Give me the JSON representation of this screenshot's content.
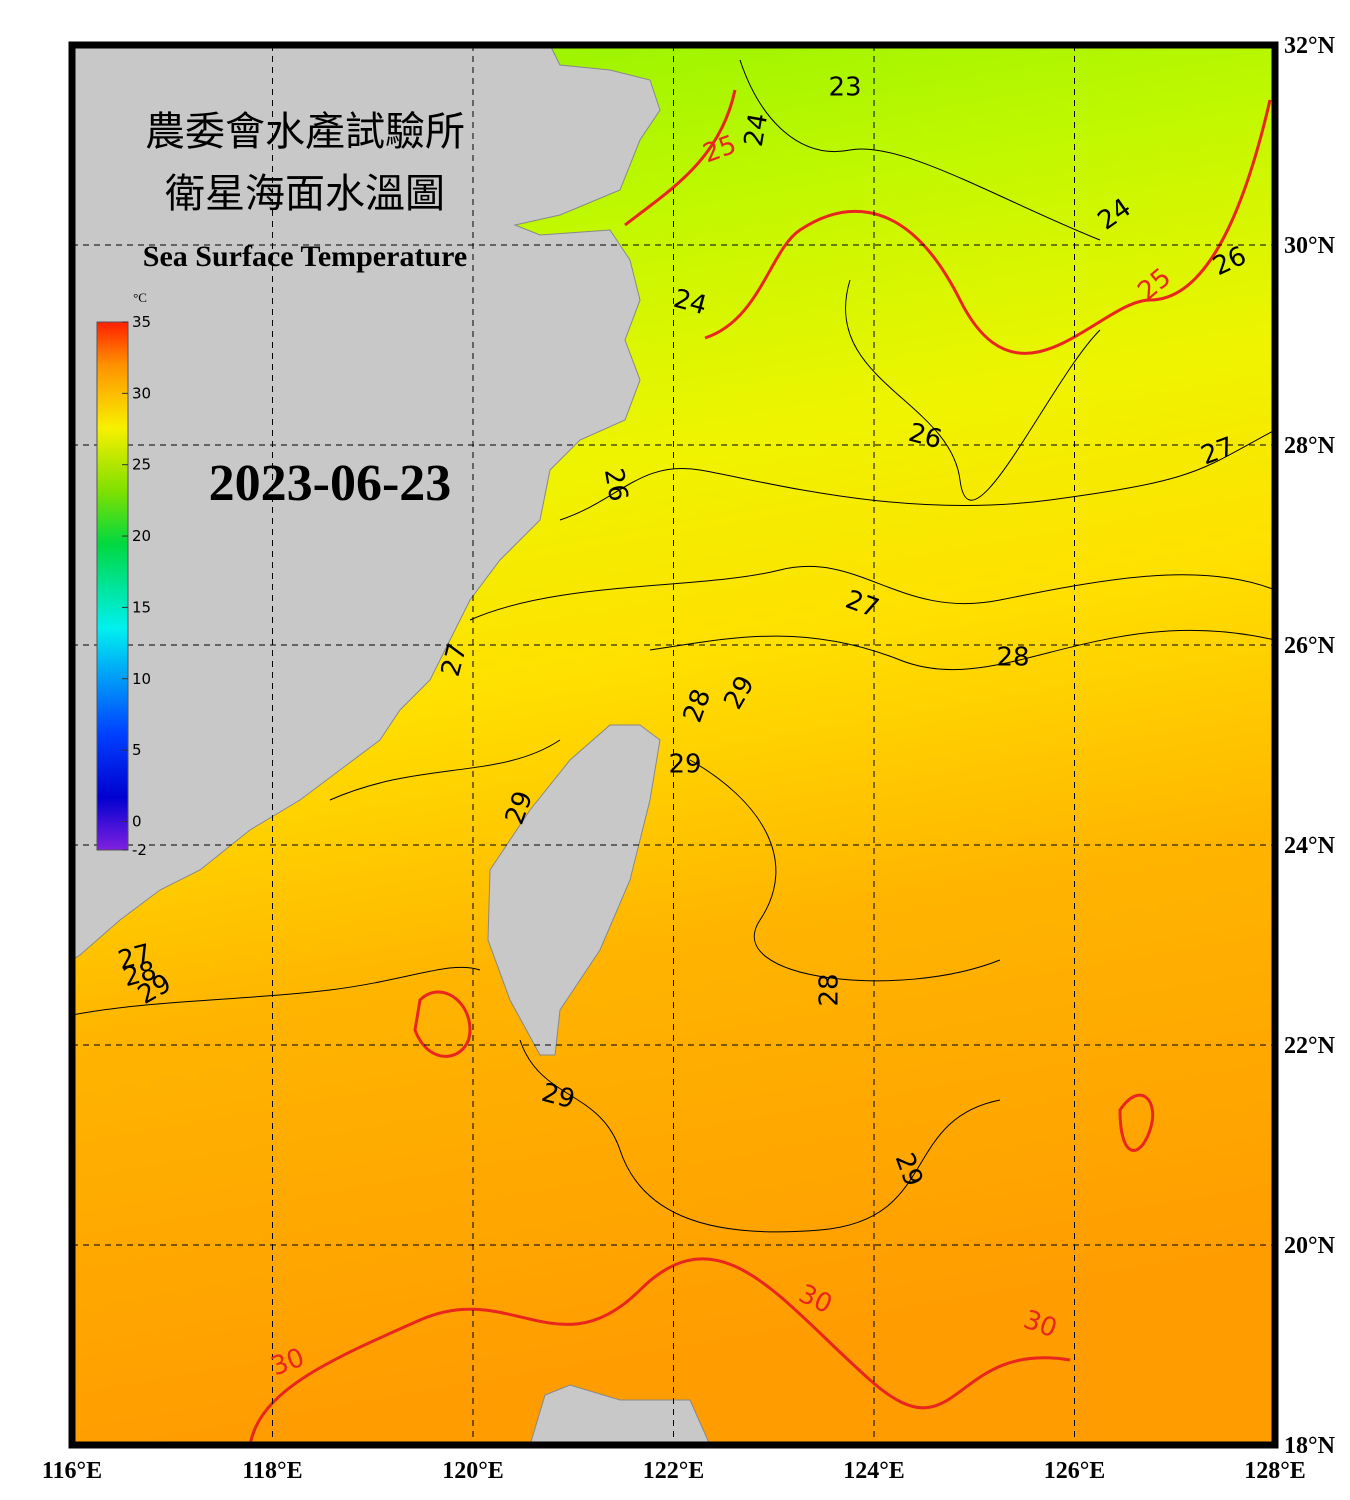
{
  "header": {
    "title_zh_1": "農委會水產試驗所",
    "title_zh_2": "衛星海面水溫圖",
    "title_en": "Sea Surface Temperature",
    "date": "2023-06-23"
  },
  "colorbar": {
    "unit": "°C",
    "range": [
      -2,
      35
    ],
    "ticks": [
      35,
      30,
      25,
      20,
      15,
      10,
      5,
      0,
      -2
    ]
  },
  "map": {
    "lon_range": [
      116,
      128
    ],
    "lat_range": [
      18,
      32
    ],
    "lon_ticks": [
      {
        "value": 116,
        "label": "116°E"
      },
      {
        "value": 118,
        "label": "118°E"
      },
      {
        "value": 120,
        "label": "120°E"
      },
      {
        "value": 122,
        "label": "122°E"
      },
      {
        "value": 124,
        "label": "124°E"
      },
      {
        "value": 126,
        "label": "126°E"
      },
      {
        "value": 128,
        "label": "128°E"
      }
    ],
    "lat_ticks": [
      {
        "value": 32,
        "label": "32°N"
      },
      {
        "value": 30,
        "label": "30°N"
      },
      {
        "value": 28,
        "label": "28°N"
      },
      {
        "value": 26,
        "label": "26°N"
      },
      {
        "value": 24,
        "label": "24°N"
      },
      {
        "value": 22,
        "label": "22°N"
      },
      {
        "value": 20,
        "label": "20°N"
      },
      {
        "value": 18,
        "label": "18°N"
      }
    ],
    "contour_labels": [
      {
        "text": "23",
        "color": "#000000"
      },
      {
        "text": "24",
        "color": "#000000"
      },
      {
        "text": "25",
        "color": "#e8261e"
      },
      {
        "text": "24",
        "color": "#000000"
      },
      {
        "text": "25",
        "color": "#e8261e"
      },
      {
        "text": "26",
        "color": "#000000"
      },
      {
        "text": "24",
        "color": "#000000"
      },
      {
        "text": "26",
        "color": "#000000"
      },
      {
        "text": "27",
        "color": "#000000"
      },
      {
        "text": "26",
        "color": "#000000"
      },
      {
        "text": "27",
        "color": "#000000"
      },
      {
        "text": "28",
        "color": "#000000"
      },
      {
        "text": "27",
        "color": "#000000"
      },
      {
        "text": "28",
        "color": "#000000"
      },
      {
        "text": "29",
        "color": "#000000"
      },
      {
        "text": "29",
        "color": "#000000"
      },
      {
        "text": "29",
        "color": "#000000"
      },
      {
        "text": "28",
        "color": "#000000"
      },
      {
        "text": "29",
        "color": "#000000"
      },
      {
        "text": "29",
        "color": "#000000"
      },
      {
        "text": "27",
        "color": "#000000"
      },
      {
        "text": "28",
        "color": "#000000"
      },
      {
        "text": "29",
        "color": "#000000"
      },
      {
        "text": "30",
        "color": "#e8261e"
      },
      {
        "text": "30",
        "color": "#e8261e"
      },
      {
        "text": "30",
        "color": "#e8261e"
      }
    ]
  }
}
